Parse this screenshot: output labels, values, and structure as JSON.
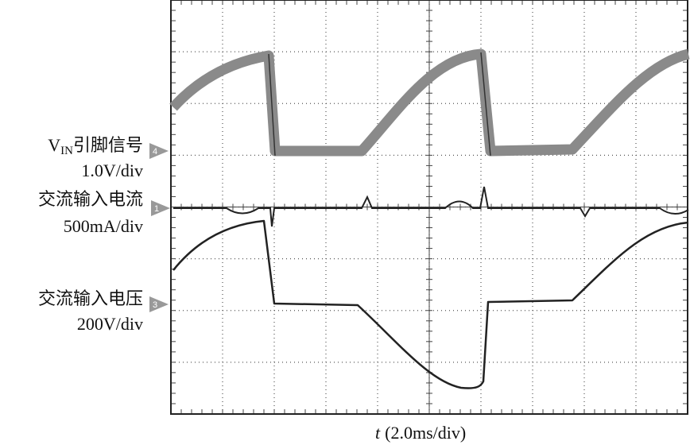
{
  "channels": [
    {
      "marker": "4",
      "name": {
        "main": "V",
        "sub": "IN",
        "rest": "引脚信号"
      },
      "scale": "1.0V/div"
    },
    {
      "marker": "1",
      "name": {
        "main": "交流输入电流"
      },
      "scale": "500mA/div"
    },
    {
      "marker": "3",
      "name": {
        "main": "交流输入电压"
      },
      "scale": "200V/div"
    }
  ],
  "x_axis": {
    "variable": "t",
    "scale": "(2.0ms/div)"
  }
}
